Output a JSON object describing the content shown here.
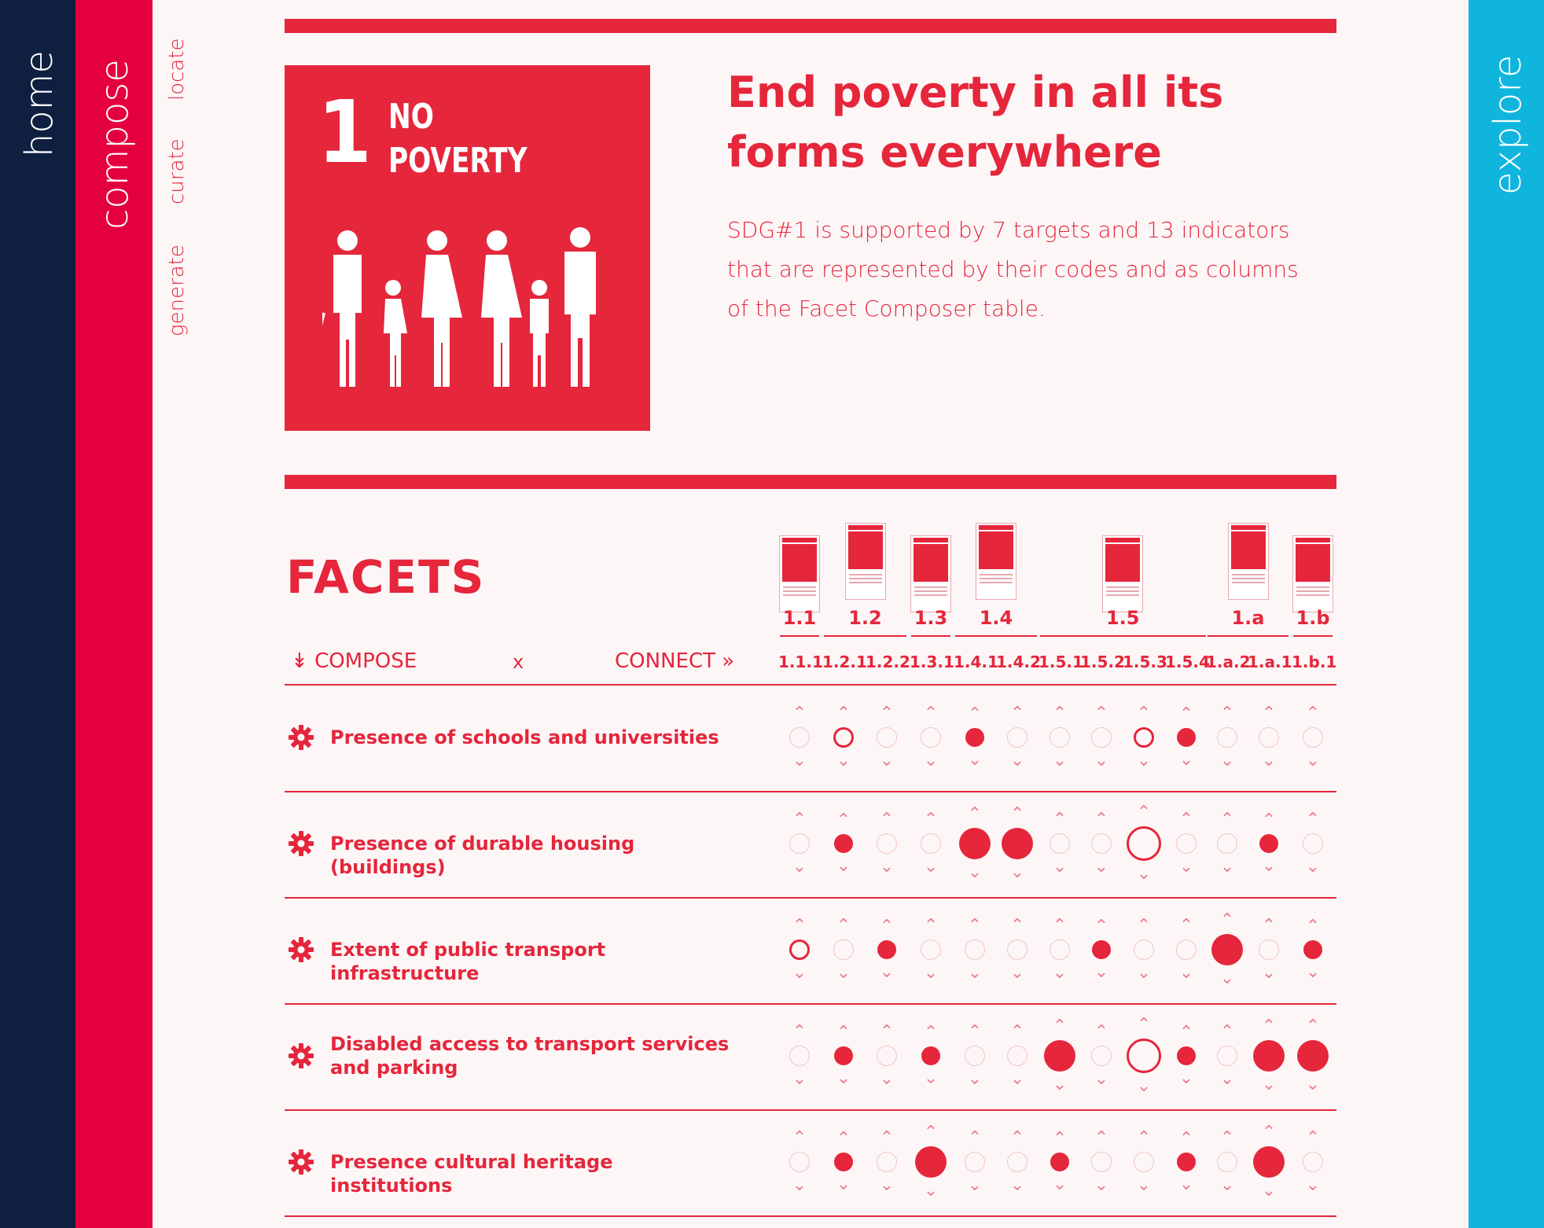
{
  "nav": {
    "home": "home",
    "compose": "compose",
    "sub": [
      "locate",
      "curate",
      "generate"
    ],
    "explore": "explore"
  },
  "sdg": {
    "number": "1",
    "name": "NO\nPOVERTY",
    "headline": "End poverty in all its forms everywhere",
    "intro": "SDG#1 is supported by 7 targets and 13 indicators that are represented by their codes and as columns of the Facet Composer table."
  },
  "facets": {
    "title": "FACETS",
    "compose_label": "COMPOSE",
    "x_label": "x",
    "connect_label": "CONNECT",
    "targets": [
      "1.1",
      "1.2",
      "1.3",
      "1.4",
      "1.5",
      "1.a",
      "1.b"
    ],
    "indicators": [
      "1.1.1",
      "1.2.1",
      "1.2.2",
      "1.3.1",
      "1.4.1",
      "1.4.2",
      "1.5.1",
      "1.5.2",
      "1.5.3",
      "1.5.4",
      "1.a.2",
      "1.a.1",
      "1.b.1"
    ],
    "rows": [
      {
        "label": "Presence of schools and universities",
        "cells": [
          "empty",
          "ring",
          "empty",
          "empty",
          "s",
          "empty",
          "empty",
          "empty",
          "ring",
          "s",
          "empty",
          "empty",
          "empty"
        ]
      },
      {
        "label": "Presence of durable housing (buildings)",
        "cells": [
          "empty",
          "s",
          "empty",
          "empty",
          "l",
          "l",
          "empty",
          "empty",
          "bigring",
          "empty",
          "empty",
          "s",
          "empty"
        ]
      },
      {
        "label": "Extent of public transport infrastructure",
        "cells": [
          "ring",
          "empty",
          "s",
          "empty",
          "empty",
          "empty",
          "empty",
          "s",
          "empty",
          "empty",
          "l",
          "empty",
          "s"
        ]
      },
      {
        "label": "Disabled access to transport services and parking",
        "cells": [
          "empty",
          "s",
          "empty",
          "s",
          "empty",
          "empty",
          "l",
          "empty",
          "bigring",
          "s",
          "empty",
          "l",
          "l"
        ]
      },
      {
        "label": "Presence cultural heritage institutions",
        "cells": [
          "empty",
          "s",
          "empty",
          "l",
          "empty",
          "empty",
          "s",
          "empty",
          "empty",
          "s",
          "empty",
          "l",
          "empty"
        ]
      }
    ]
  },
  "colors": {
    "navy": "#0e1f40",
    "magenta": "#e4003f",
    "red": "#e5263b",
    "cyan": "#10b5de"
  }
}
